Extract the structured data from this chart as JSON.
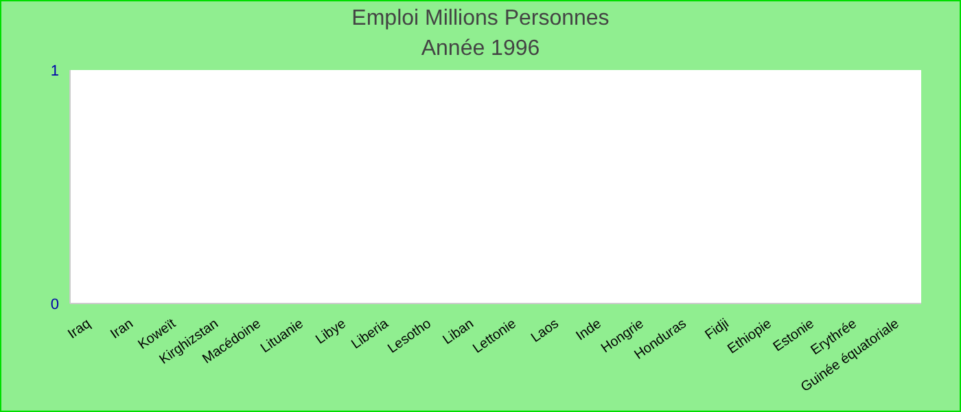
{
  "chart_data": {
    "type": "bar",
    "title": "Emploi Millions Personnes",
    "subtitle": "Année 1996",
    "categories": [
      "Iraq",
      "Iran",
      "Koweït",
      "Kirghizstan",
      "Macédoine",
      "Lituanie",
      "Libye",
      "Liberia",
      "Lesotho",
      "Liban",
      "Lettonie",
      "Laos",
      "Inde",
      "Hongrie",
      "Honduras",
      "Fidji",
      "Ethiopie",
      "Estonie",
      "Erythrée",
      "Guinée équatoriale"
    ],
    "values": [
      null,
      null,
      null,
      null,
      null,
      null,
      null,
      null,
      null,
      null,
      null,
      null,
      null,
      null,
      null,
      null,
      null,
      null,
      null,
      null
    ],
    "ylim": [
      0,
      1
    ],
    "yticks": [
      0,
      1
    ],
    "grid": false
  }
}
